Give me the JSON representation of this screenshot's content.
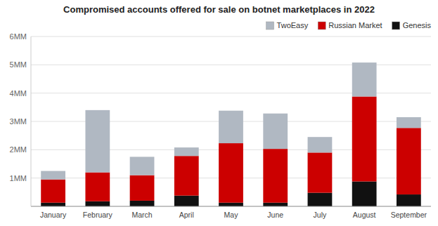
{
  "chart_data": {
    "type": "bar",
    "stacked": true,
    "title": "Compromised accounts offered for sale on botnet marketplaces in 2022",
    "categories": [
      "January",
      "February",
      "March",
      "April",
      "May",
      "June",
      "July",
      "August",
      "September"
    ],
    "series": [
      {
        "name": "Genesis",
        "color": "#111111",
        "values": [
          0.13,
          0.18,
          0.2,
          0.38,
          0.13,
          0.13,
          0.48,
          0.88,
          0.42
        ]
      },
      {
        "name": "Russian Market",
        "color": "#cc0000",
        "values": [
          0.82,
          1.02,
          0.9,
          1.4,
          2.1,
          1.9,
          1.42,
          3.0,
          2.35
        ]
      },
      {
        "name": "TwoEasy",
        "color": "#b0b8c2",
        "values": [
          0.3,
          2.2,
          0.65,
          0.3,
          1.15,
          1.25,
          0.55,
          1.2,
          0.38
        ]
      }
    ],
    "ylim": [
      0,
      6
    ],
    "yticks": [
      {
        "value": 1,
        "label": "1MM"
      },
      {
        "value": 2,
        "label": "2MM"
      },
      {
        "value": 3,
        "label": "3MM"
      },
      {
        "value": 4,
        "label": "4MM"
      },
      {
        "value": 5,
        "label": "5MM"
      },
      {
        "value": 6,
        "label": "6MM"
      }
    ],
    "grid": true,
    "legend": "upper right"
  }
}
